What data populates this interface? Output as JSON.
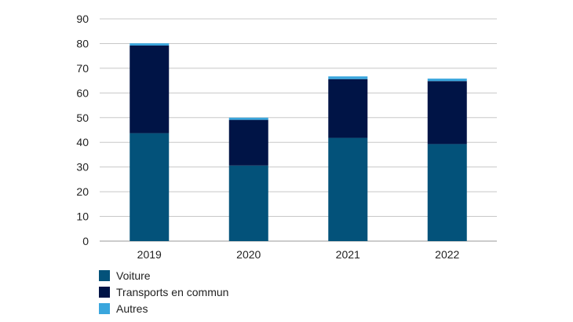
{
  "chart_data": {
    "type": "bar",
    "stacked": true,
    "categories": [
      "2019",
      "2020",
      "2021",
      "2022"
    ],
    "series": [
      {
        "name": "Voiture",
        "color": "#03527a",
        "values": [
          43.7,
          30.6,
          41.8,
          39.3
        ]
      },
      {
        "name": "Transports en commun",
        "color": "#001446",
        "values": [
          35.5,
          18.5,
          23.8,
          25.5
        ]
      },
      {
        "name": "Autres",
        "color": "#3aa6dd",
        "values": [
          0.9,
          0.9,
          1.1,
          1.0
        ]
      }
    ],
    "ylim": [
      0,
      90
    ],
    "yticks": [
      0,
      10,
      20,
      30,
      40,
      50,
      60,
      70,
      80,
      90
    ],
    "grid": true,
    "legend_position": "bottom-left",
    "title": "",
    "xlabel": "",
    "ylabel": ""
  }
}
